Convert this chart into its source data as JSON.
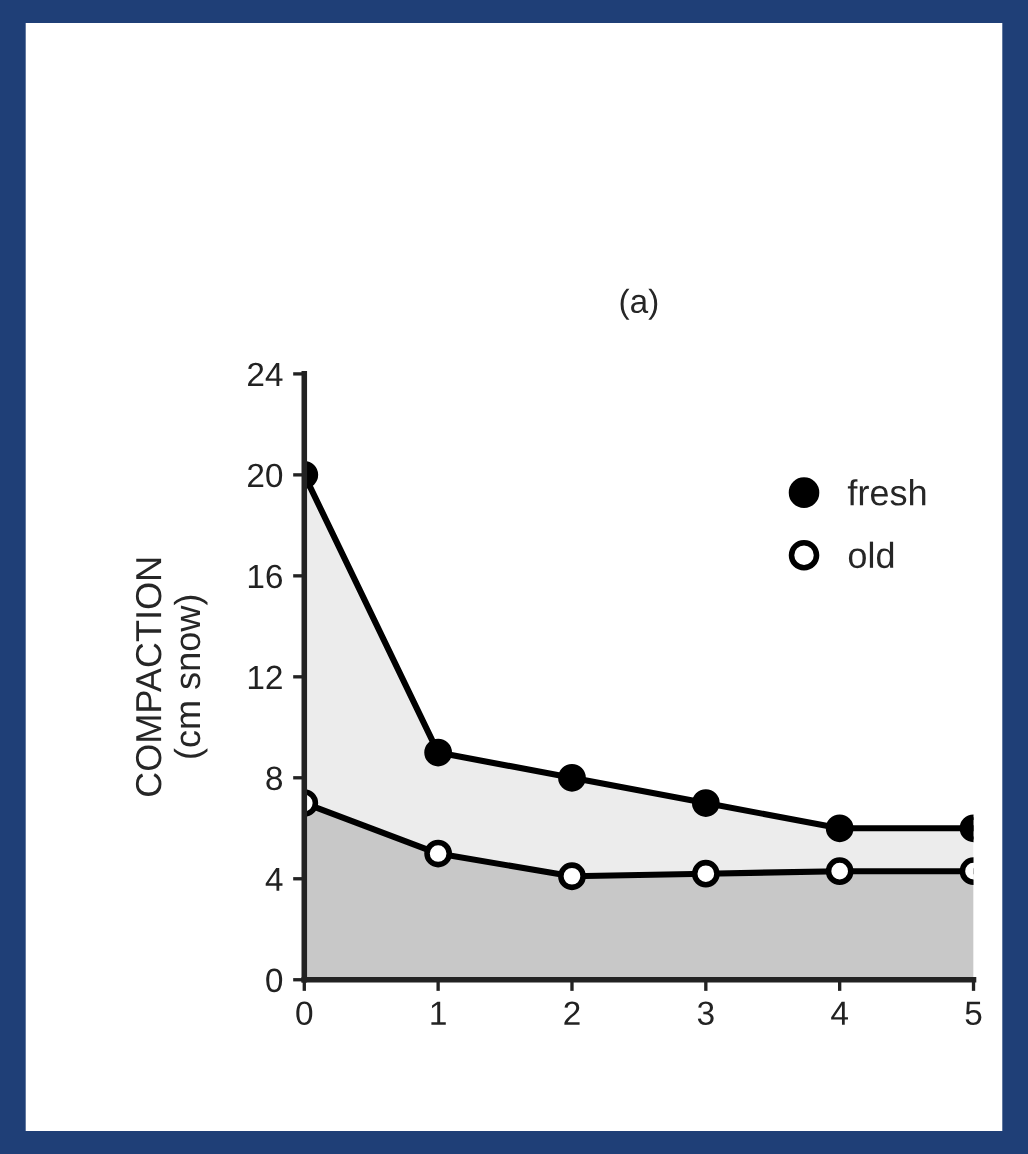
{
  "chart_data": {
    "type": "area",
    "title": "(a)",
    "ylabel": "COMPACTION\n(cm snow)",
    "x": [
      0,
      1,
      2,
      3,
      4,
      5
    ],
    "series": [
      {
        "name": "fresh",
        "color": "#000000",
        "values": [
          20,
          9,
          8,
          7,
          6,
          6
        ]
      },
      {
        "name": "old",
        "color": "#000000",
        "values": [
          7,
          5,
          4.1,
          4.2,
          4.3,
          4.3
        ]
      }
    ],
    "xlim": [
      0,
      5
    ],
    "ylim": [
      0,
      24
    ],
    "xticks": [
      0,
      1,
      2,
      3,
      4,
      5
    ],
    "yticks": [
      0,
      4,
      8,
      12,
      16,
      20,
      24
    ],
    "grid": false,
    "legend": "top right",
    "marker": "circle",
    "line_style": "solid"
  }
}
